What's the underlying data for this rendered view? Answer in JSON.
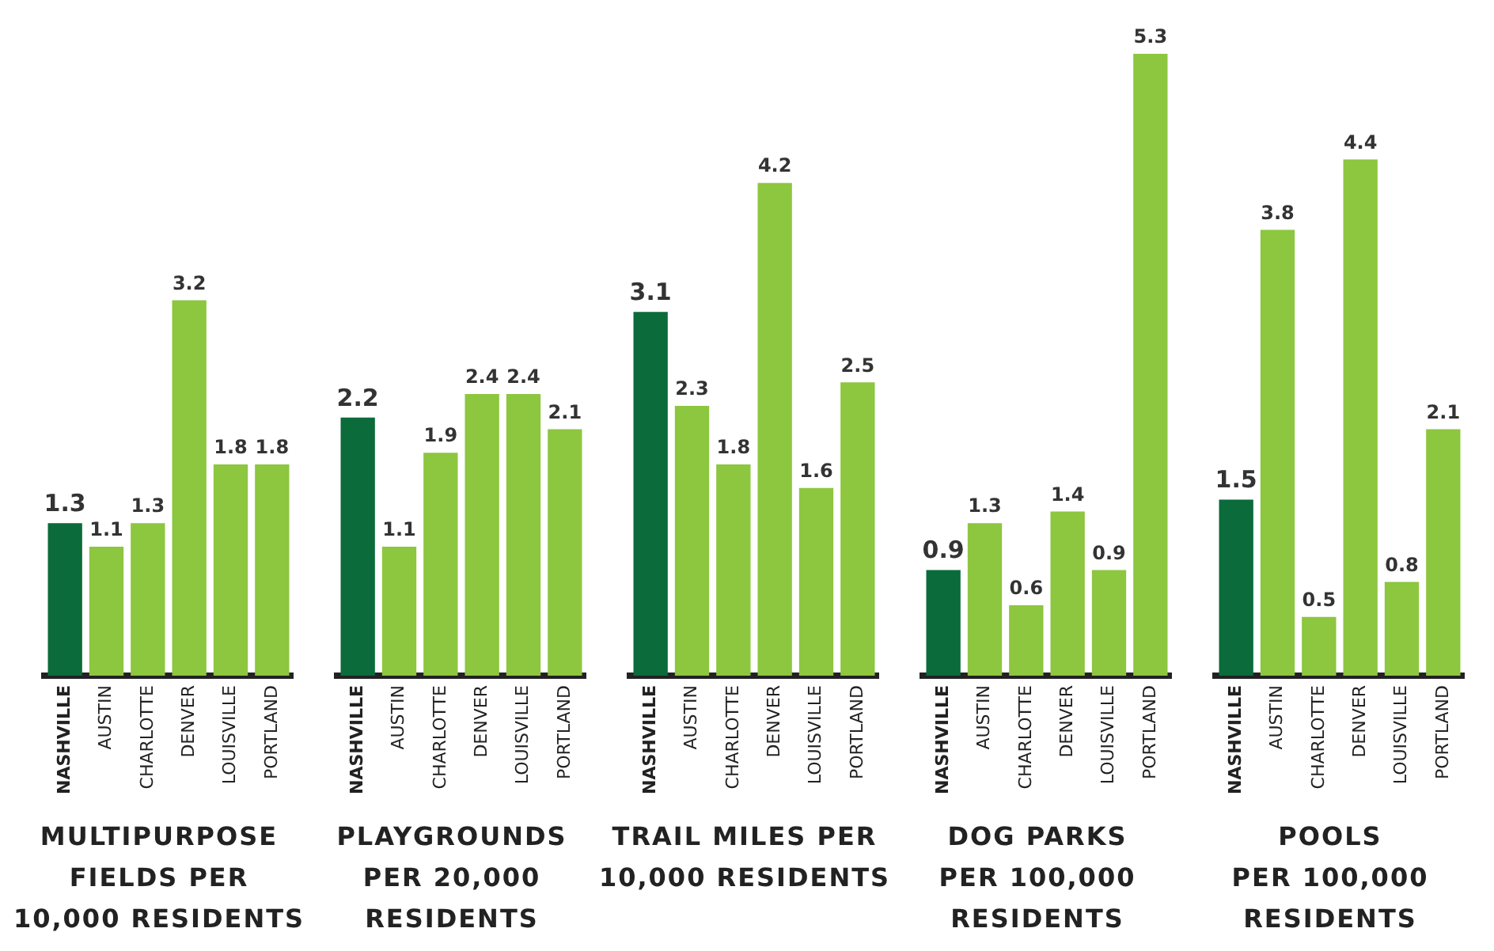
{
  "chart_data": [
    {
      "type": "bar",
      "title": "MULTIPURPOSE\nFIELDS PER\n10,000 RESIDENTS",
      "categories": [
        "NASHVILLE",
        "AUSTIN",
        "CHARLOTTE",
        "DENVER",
        "LOUISVILLE",
        "PORTLAND"
      ],
      "values": [
        1.3,
        1.1,
        1.3,
        3.2,
        1.8,
        1.8
      ],
      "colors": [
        "#0b6b3a",
        "#8dc63f",
        "#8dc63f",
        "#8dc63f",
        "#8dc63f",
        "#8dc63f"
      ],
      "data_labels": true
    },
    {
      "type": "bar",
      "title": "PLAYGROUNDS\nPER 20,000\nRESIDENTS",
      "categories": [
        "NASHVILLE",
        "AUSTIN",
        "CHARLOTTE",
        "DENVER",
        "LOUISVILLE",
        "PORTLAND"
      ],
      "values": [
        2.2,
        1.1,
        1.9,
        2.4,
        2.4,
        2.1
      ],
      "colors": [
        "#0b6b3a",
        "#8dc63f",
        "#8dc63f",
        "#8dc63f",
        "#8dc63f",
        "#8dc63f"
      ],
      "data_labels": true
    },
    {
      "type": "bar",
      "title": "TRAIL MILES PER\n10,000 RESIDENTS",
      "categories": [
        "NASHVILLE",
        "AUSTIN",
        "CHARLOTTE",
        "DENVER",
        "LOUISVILLE",
        "PORTLAND"
      ],
      "values": [
        3.1,
        2.3,
        1.8,
        4.2,
        1.6,
        2.5
      ],
      "colors": [
        "#0b6b3a",
        "#8dc63f",
        "#8dc63f",
        "#8dc63f",
        "#8dc63f",
        "#8dc63f"
      ],
      "data_labels": true
    },
    {
      "type": "bar",
      "title": "DOG PARKS\nPER 100,000\nRESIDENTS",
      "categories": [
        "NASHVILLE",
        "AUSTIN",
        "CHARLOTTE",
        "DENVER",
        "LOUISVILLE",
        "PORTLAND"
      ],
      "values": [
        0.9,
        1.3,
        0.6,
        1.4,
        0.9,
        5.3
      ],
      "colors": [
        "#0b6b3a",
        "#8dc63f",
        "#8dc63f",
        "#8dc63f",
        "#8dc63f",
        "#8dc63f"
      ],
      "data_labels": true
    },
    {
      "type": "bar",
      "title": "POOLS\nPER 100,000\nRESIDENTS",
      "categories": [
        "NASHVILLE",
        "AUSTIN",
        "CHARLOTTE",
        "DENVER",
        "LOUISVILLE",
        "PORTLAND"
      ],
      "values": [
        1.5,
        3.8,
        0.5,
        4.4,
        0.8,
        2.1
      ],
      "colors": [
        "#0b6b3a",
        "#8dc63f",
        "#8dc63f",
        "#8dc63f",
        "#8dc63f",
        "#8dc63f"
      ],
      "data_labels": true
    }
  ]
}
